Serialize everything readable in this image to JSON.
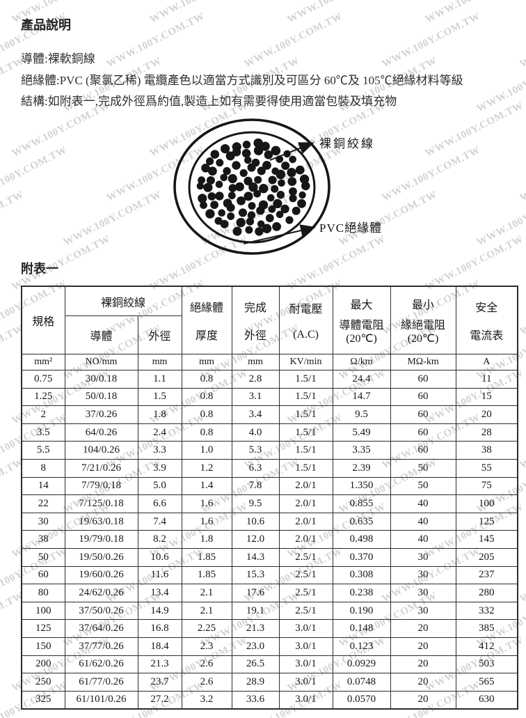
{
  "doc": {
    "title": "產品說明",
    "lines": [
      "導體:裸軟銅線",
      "絕緣體:PVC (聚氯乙稀) 電纜產色以適當方式識別及可區分 60℃及 105℃絕緣材料等級",
      "結構:如附表一,完成外徑爲約值,製造上如有需要得使用適當包裝及填充物"
    ]
  },
  "watermark": {
    "text": "WWW.100Y.COM.TW",
    "color": "#949494"
  },
  "diagram": {
    "core_label": "裸銅絞線",
    "insulation_label": "PVC絕緣體"
  },
  "table": {
    "title": "附表一",
    "header": {
      "spec": "規格",
      "bare_copper": "裸銅絞線",
      "conductor": "導體",
      "conductor_od": "外徑",
      "insulation_1": "絕緣體",
      "insulation_2": "厚度",
      "finished_1": "完成",
      "finished_2": "外徑",
      "withstand_1": "耐電壓",
      "withstand_2": "(A.C)",
      "max_res_1": "最大",
      "max_res_2": "導體電阻",
      "max_res_3": "(20℃)",
      "min_res_1": "最小",
      "min_res_2": "緣絕電阻",
      "min_res_3": "(20℃)",
      "safe_1": "安全",
      "safe_2": "電流表"
    },
    "units": [
      "mm²",
      "NO/mm",
      "mm",
      "mm",
      "mm",
      "KV/min",
      "Ω/km",
      "MΩ-km",
      "A"
    ],
    "rows": [
      [
        "0.75",
        "30/0.18",
        "1.1",
        "0.8",
        "2.8",
        "1.5/1",
        "24.4",
        "60",
        "11"
      ],
      [
        "1.25",
        "50/0.18",
        "1.5",
        "0.8",
        "3.1",
        "1.5/1",
        "14.7",
        "60",
        "15"
      ],
      [
        "2",
        "37/0.26",
        "1.8",
        "0.8",
        "3.4",
        "1.5/1",
        "9.5",
        "60",
        "20"
      ],
      [
        "3.5",
        "64/0.26",
        "2.4",
        "0.8",
        "4.0",
        "1.5/1",
        "5.49",
        "60",
        "28"
      ],
      [
        "5.5",
        "104/0.26",
        "3.3",
        "1.0",
        "5.3",
        "1.5/1",
        "3.35",
        "60",
        "38"
      ],
      [
        "8",
        "7/21/0.26",
        "3.9",
        "1.2",
        "6.3",
        "1.5/1",
        "2.39",
        "50",
        "55"
      ],
      [
        "14",
        "7/79/0.18",
        "5.0",
        "1.4",
        "7.8",
        "2.0/1",
        "1.350",
        "50",
        "75"
      ],
      [
        "22",
        "7/125/0.18",
        "6.6",
        "1.6",
        "9.5",
        "2.0/1",
        "0.855",
        "40",
        "100"
      ],
      [
        "30",
        "19/63/0.18",
        "7.4",
        "1.6",
        "10.6",
        "2.0/1",
        "0.635",
        "40",
        "125"
      ],
      [
        "38",
        "19/79/0.18",
        "8.2",
        "1.8",
        "12.0",
        "2.0/1",
        "0.498",
        "40",
        "145"
      ],
      [
        "50",
        "19/50/0.26",
        "10.6",
        "1.85",
        "14.3",
        "2.5/1",
        "0.370",
        "30",
        "205"
      ],
      [
        "60",
        "19/60/0.26",
        "11.6",
        "1.85",
        "15.3",
        "2.5/1",
        "0.308",
        "30",
        "237"
      ],
      [
        "80",
        "24/62/0.26",
        "13.4",
        "2.1",
        "17.6",
        "2.5/1",
        "0.238",
        "30",
        "280"
      ],
      [
        "100",
        "37/50/0.26",
        "14.9",
        "2.1",
        "19.1",
        "2.5/1",
        "0.190",
        "30",
        "332"
      ],
      [
        "125",
        "37/64/0.26",
        "16.8",
        "2.25",
        "21.3",
        "3.0/1",
        "0.148",
        "20",
        "385"
      ],
      [
        "150",
        "37/77/0.26",
        "18.4",
        "2.3",
        "23.0",
        "3.0/1",
        "0.123",
        "20",
        "412"
      ],
      [
        "200",
        "61/62/0.26",
        "21.3",
        "2.6",
        "26.5",
        "3.0/1",
        "0.0929",
        "20",
        "503"
      ],
      [
        "250",
        "61/77/0.26",
        "23.7",
        "2.6",
        "28.9",
        "3.0/1",
        "0.0748",
        "20",
        "565"
      ],
      [
        "325",
        "61/101/0.26",
        "27.2",
        "3.2",
        "33.6",
        "3.0/1",
        "0.0570",
        "20",
        "630"
      ]
    ]
  }
}
